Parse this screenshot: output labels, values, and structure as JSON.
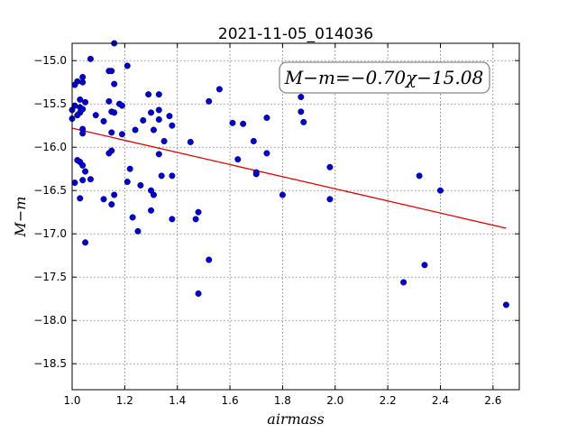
{
  "chart_data": {
    "type": "scatter",
    "title": "2021-11-05_014036",
    "xlabel": "airmass",
    "ylabel": "M−m",
    "xlim": [
      1.0,
      2.7
    ],
    "ylim": [
      -18.8,
      -14.8
    ],
    "xticks": [
      1.0,
      1.2,
      1.4,
      1.6,
      1.8,
      2.0,
      2.2,
      2.4,
      2.6
    ],
    "xtick_labels": [
      "1.0",
      "1.2",
      "1.4",
      "1.6",
      "1.8",
      "2.0",
      "2.2",
      "2.4",
      "2.6"
    ],
    "yticks": [
      -15.0,
      -15.5,
      -16.0,
      -16.5,
      -17.0,
      -17.5,
      -18.0,
      -18.5
    ],
    "ytick_labels": [
      "−15.0",
      "−15.5",
      "−16.0",
      "−16.5",
      "−17.0",
      "−17.5",
      "−18.0",
      "−18.5"
    ],
    "grid": true,
    "annotation": "M−m=−0.70χ−15.08",
    "annotation_position": "top-right",
    "marker_color": "#0000cc",
    "fit_color": "#dd0000",
    "fit": {
      "slope": -0.7,
      "intercept": -15.08,
      "x_range": [
        1.0,
        2.65
      ]
    },
    "points": [
      [
        1.16,
        -14.8
      ],
      [
        1.07,
        -14.98
      ],
      [
        1.02,
        -15.24
      ],
      [
        1.04,
        -15.25
      ],
      [
        1.01,
        -15.28
      ],
      [
        1.04,
        -15.19
      ],
      [
        1.14,
        -15.12
      ],
      [
        1.15,
        -15.12
      ],
      [
        1.21,
        -15.06
      ],
      [
        1.16,
        -15.27
      ],
      [
        1.03,
        -15.45
      ],
      [
        1.05,
        -15.48
      ],
      [
        1.01,
        -15.52
      ],
      [
        1.03,
        -15.54
      ],
      [
        1.04,
        -15.56
      ],
      [
        1.0,
        -15.57
      ],
      [
        1.03,
        -15.6
      ],
      [
        1.0,
        -15.67
      ],
      [
        1.02,
        -15.63
      ],
      [
        1.09,
        -15.63
      ],
      [
        1.14,
        -15.47
      ],
      [
        1.15,
        -15.59
      ],
      [
        1.16,
        -15.6
      ],
      [
        1.18,
        -15.5
      ],
      [
        1.19,
        -15.52
      ],
      [
        1.12,
        -15.7
      ],
      [
        1.04,
        -15.79
      ],
      [
        1.04,
        -15.84
      ],
      [
        1.15,
        -15.83
      ],
      [
        1.19,
        -15.85
      ],
      [
        1.29,
        -15.39
      ],
      [
        1.33,
        -15.39
      ],
      [
        1.3,
        -15.6
      ],
      [
        1.33,
        -15.57
      ],
      [
        1.37,
        -15.64
      ],
      [
        1.27,
        -15.69
      ],
      [
        1.33,
        -15.68
      ],
      [
        1.38,
        -15.75
      ],
      [
        1.24,
        -15.8
      ],
      [
        1.31,
        -15.8
      ],
      [
        1.35,
        -15.93
      ],
      [
        1.15,
        -16.04
      ],
      [
        1.14,
        -16.07
      ],
      [
        1.33,
        -16.08
      ],
      [
        1.02,
        -16.15
      ],
      [
        1.03,
        -16.17
      ],
      [
        1.04,
        -16.21
      ],
      [
        1.05,
        -16.28
      ],
      [
        1.04,
        -16.38
      ],
      [
        1.07,
        -16.37
      ],
      [
        1.01,
        -16.41
      ],
      [
        1.22,
        -16.25
      ],
      [
        1.21,
        -16.4
      ],
      [
        1.26,
        -16.44
      ],
      [
        1.3,
        -16.5
      ],
      [
        1.34,
        -16.33
      ],
      [
        1.38,
        -16.33
      ],
      [
        1.31,
        -16.55
      ],
      [
        1.03,
        -16.59
      ],
      [
        1.12,
        -16.6
      ],
      [
        1.15,
        -16.66
      ],
      [
        1.16,
        -16.55
      ],
      [
        1.3,
        -16.73
      ],
      [
        1.23,
        -16.81
      ],
      [
        1.25,
        -16.97
      ],
      [
        1.38,
        -16.83
      ],
      [
        1.47,
        -16.83
      ],
      [
        1.48,
        -16.75
      ],
      [
        1.05,
        -17.1
      ],
      [
        1.52,
        -15.47
      ],
      [
        1.56,
        -15.33
      ],
      [
        1.45,
        -15.94
      ],
      [
        1.52,
        -17.3
      ],
      [
        1.48,
        -17.69
      ],
      [
        1.61,
        -15.72
      ],
      [
        1.65,
        -15.73
      ],
      [
        1.63,
        -16.14
      ],
      [
        1.69,
        -15.93
      ],
      [
        1.74,
        -15.66
      ],
      [
        1.74,
        -16.07
      ],
      [
        1.7,
        -16.31
      ],
      [
        1.7,
        -16.29
      ],
      [
        1.8,
        -16.55
      ],
      [
        1.87,
        -15.42
      ],
      [
        1.87,
        -15.59
      ],
      [
        1.88,
        -15.71
      ],
      [
        1.98,
        -16.23
      ],
      [
        1.98,
        -16.6
      ],
      [
        2.26,
        -17.56
      ],
      [
        2.32,
        -16.33
      ],
      [
        2.34,
        -17.36
      ],
      [
        2.4,
        -16.5
      ],
      [
        2.65,
        -17.82
      ]
    ]
  }
}
